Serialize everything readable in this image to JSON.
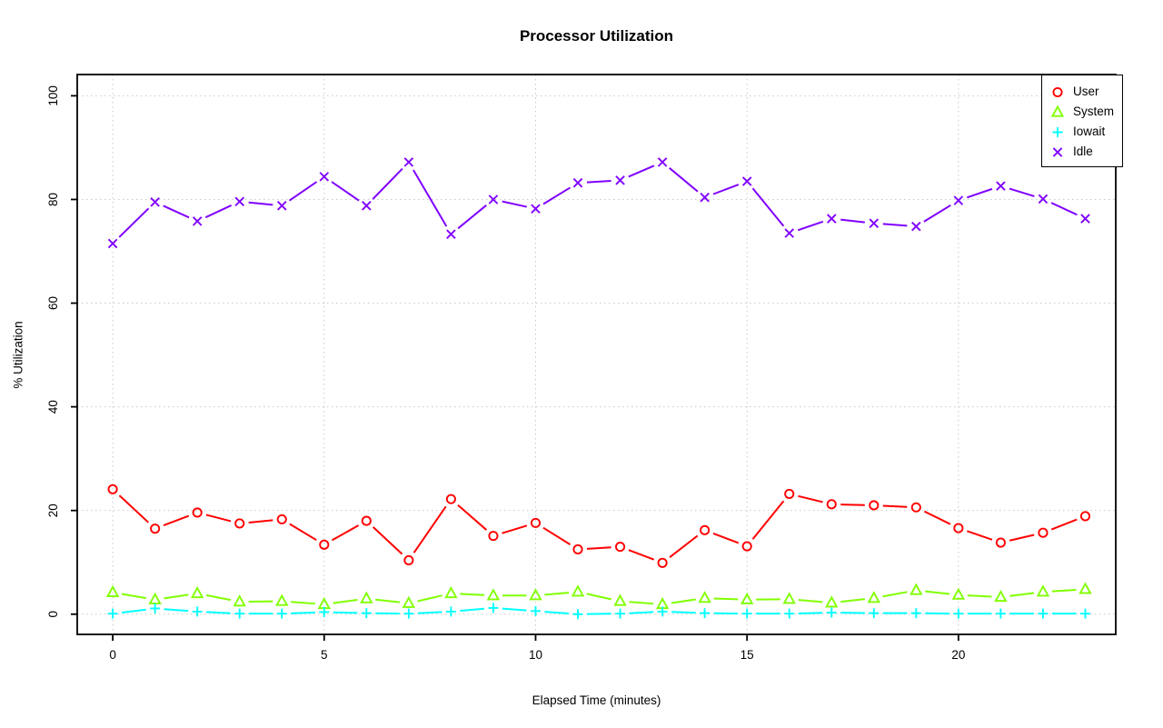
{
  "chart_data": {
    "type": "line",
    "title": "Processor Utilization",
    "xlabel": "Elapsed Time (minutes)",
    "ylabel": "% Utilization",
    "x": [
      0,
      1,
      2,
      3,
      4,
      5,
      6,
      7,
      8,
      9,
      10,
      11,
      12,
      13,
      14,
      15,
      16,
      17,
      18,
      19,
      20,
      21,
      22,
      23
    ],
    "series": [
      {
        "name": "User",
        "color": "#FF0000",
        "marker": "circle",
        "values": [
          24.1,
          16.5,
          19.6,
          17.5,
          18.3,
          13.4,
          18.0,
          10.4,
          22.2,
          15.1,
          17.6,
          12.5,
          13.0,
          9.9,
          16.2,
          13.1,
          23.2,
          21.2,
          21.0,
          20.6,
          16.6,
          13.8,
          15.7,
          18.9
        ]
      },
      {
        "name": "System",
        "color": "#80FF00",
        "marker": "triangle",
        "values": [
          4.2,
          2.8,
          4.0,
          2.4,
          2.5,
          1.9,
          3.0,
          2.1,
          4.0,
          3.6,
          3.6,
          4.3,
          2.5,
          1.9,
          3.1,
          2.8,
          2.9,
          2.2,
          3.1,
          4.6,
          3.7,
          3.3,
          4.3,
          4.8
        ]
      },
      {
        "name": "Iowait",
        "color": "#00FFFF",
        "marker": "plus",
        "values": [
          0.1,
          1.1,
          0.5,
          0.1,
          0.1,
          0.4,
          0.2,
          0.1,
          0.5,
          1.2,
          0.6,
          0.0,
          0.1,
          0.5,
          0.2,
          0.1,
          0.1,
          0.3,
          0.2,
          0.2,
          0.1,
          0.1,
          0.1,
          0.1
        ]
      },
      {
        "name": "Idle",
        "color": "#8000FF",
        "marker": "x",
        "values": [
          71.5,
          79.5,
          75.8,
          79.6,
          78.8,
          84.4,
          78.8,
          87.2,
          73.3,
          80.0,
          78.2,
          83.2,
          83.7,
          87.2,
          80.4,
          83.5,
          73.5,
          76.3,
          75.4,
          74.8,
          79.8,
          82.6,
          80.1,
          76.3
        ]
      }
    ],
    "xticks": [
      0,
      5,
      10,
      15,
      20
    ],
    "yticks": [
      0,
      20,
      40,
      60,
      80,
      100
    ],
    "xlim": [
      -0.84,
      23.72
    ],
    "ylim": [
      -3.9,
      104.1
    ],
    "grid": true,
    "legend_position": "top-right",
    "colors": {
      "axis": "#000000",
      "grid": "#c9c9c9",
      "background": "#ffffff",
      "text": "#000000"
    }
  }
}
